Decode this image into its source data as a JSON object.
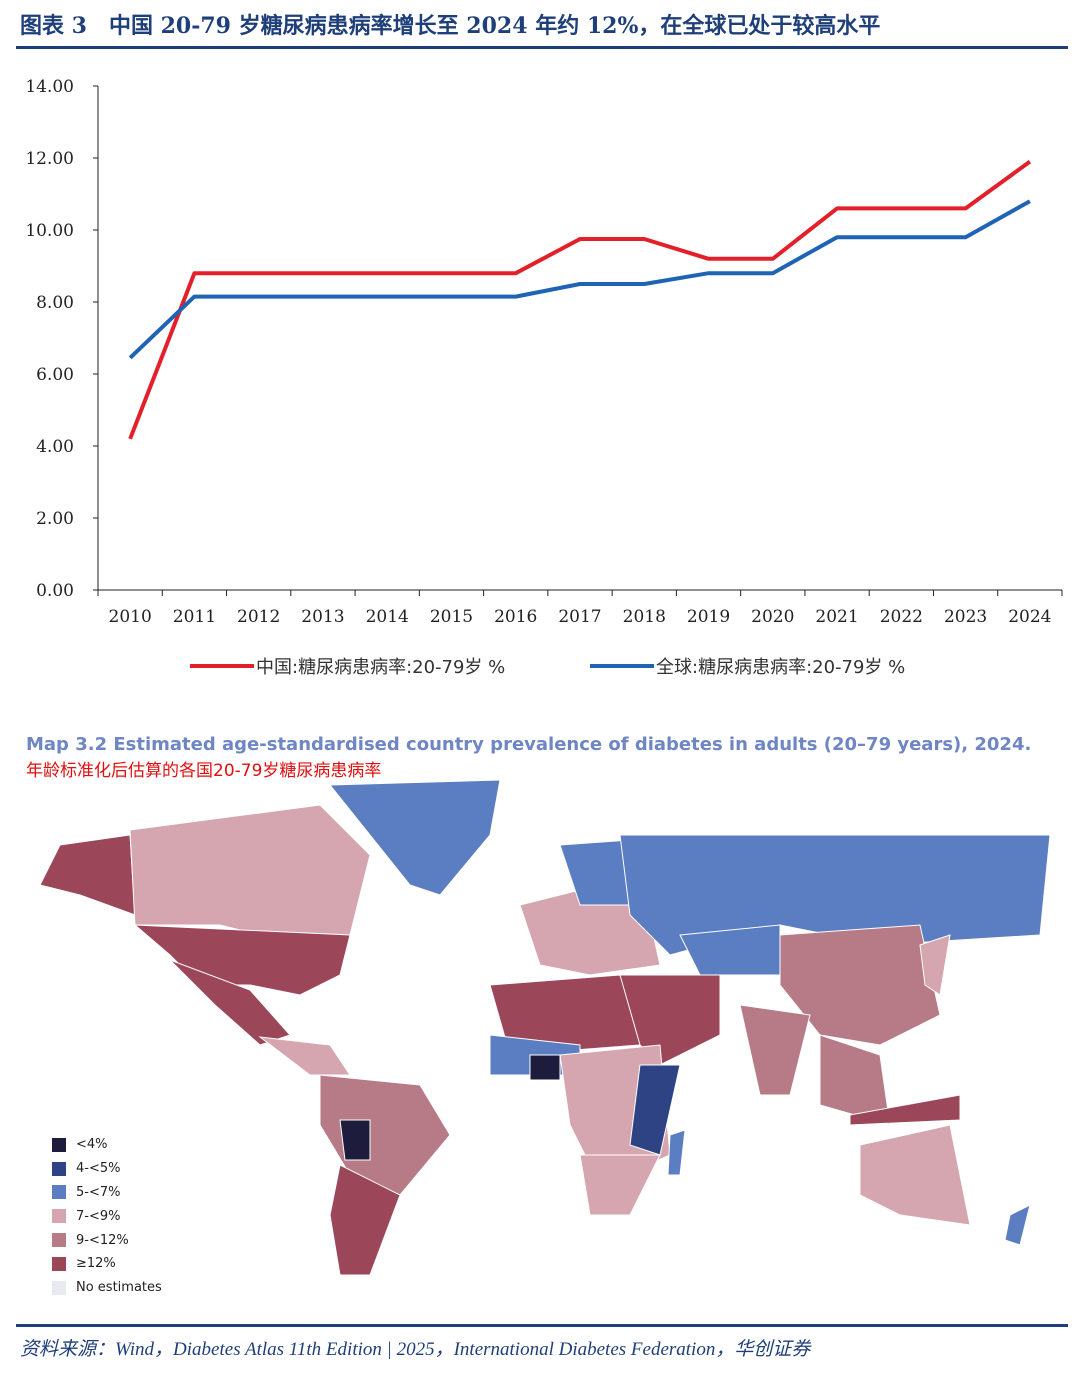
{
  "header": {
    "title": "图表 3　中国 20-79 岁糖尿病患病率增长至 2024 年约 12%，在全球已处于较高水平"
  },
  "chart_data": {
    "type": "line",
    "categories": [
      "2010",
      "2011",
      "2012",
      "2013",
      "2014",
      "2015",
      "2016",
      "2017",
      "2018",
      "2019",
      "2020",
      "2021",
      "2022",
      "2023",
      "2024"
    ],
    "ylim": [
      0,
      14
    ],
    "yticks": [
      "0.00",
      "2.00",
      "4.00",
      "6.00",
      "8.00",
      "10.00",
      "12.00",
      "14.00"
    ],
    "grid": false,
    "legend_position": "bottom",
    "series": [
      {
        "name": "中国:糖尿病患病率:20-79岁 %",
        "color": "#e3202a",
        "values": [
          4.2,
          8.8,
          8.8,
          8.8,
          8.8,
          8.8,
          8.8,
          9.75,
          9.75,
          9.2,
          9.2,
          10.6,
          10.6,
          10.6,
          11.9
        ]
      },
      {
        "name": "全球:糖尿病患病率:20-79岁 %",
        "color": "#1f64b4",
        "values": [
          6.45,
          8.15,
          8.15,
          8.15,
          8.15,
          8.15,
          8.15,
          8.5,
          8.5,
          8.8,
          8.8,
          9.8,
          9.8,
          9.8,
          10.8
        ]
      }
    ]
  },
  "map": {
    "title": "Map 3.2 Estimated age-standardised country prevalence of diabetes in adults (20–79 years), 2024.",
    "subtitle": "年龄标准化后估算的各国20-79岁糖尿病患病率",
    "legend": [
      {
        "label": "<4%",
        "color": "#1d1c3d"
      },
      {
        "label": "4-<5%",
        "color": "#2d4384"
      },
      {
        "label": "5-<7%",
        "color": "#5b7dc1"
      },
      {
        "label": "7-<9%",
        "color": "#d5a6af"
      },
      {
        "label": "9-<12%",
        "color": "#b67b86"
      },
      {
        "label": "≥12%",
        "color": "#9c4659"
      },
      {
        "label": "No estimates",
        "color": "#e8eaf2"
      }
    ]
  },
  "footer": {
    "source": "资料来源：Wind，Diabetes Atlas 11th Edition | 2025，International Diabetes Federation，华创证券"
  }
}
